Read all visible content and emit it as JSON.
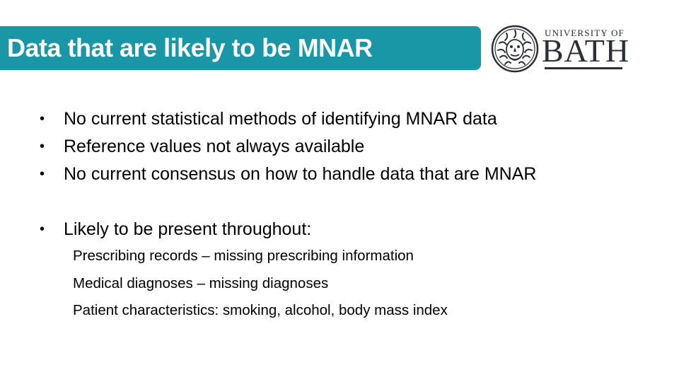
{
  "colors": {
    "title_bar": "#1a97a6",
    "title_text": "#ffffff",
    "body_text": "#000000",
    "logo": "#2b2f37"
  },
  "slide": {
    "title": "Data that are likely to be MNAR",
    "bullets": [
      "No current statistical methods of identifying MNAR data",
      "Reference values not always available",
      "No current consensus on how to handle data that are MNAR",
      "Likely to be present throughout:"
    ],
    "sub_items": [
      "Prescribing records – missing prescribing information",
      "Medical diagnoses – missing diagnoses",
      "Patient characteristics: smoking, alcohol, body mass index"
    ],
    "bullet_glyph": "•"
  },
  "logo": {
    "top_line": "UNIVERSITY OF",
    "main_word": "BATH",
    "seal_icon": "bath-gorgon-seal-icon"
  }
}
